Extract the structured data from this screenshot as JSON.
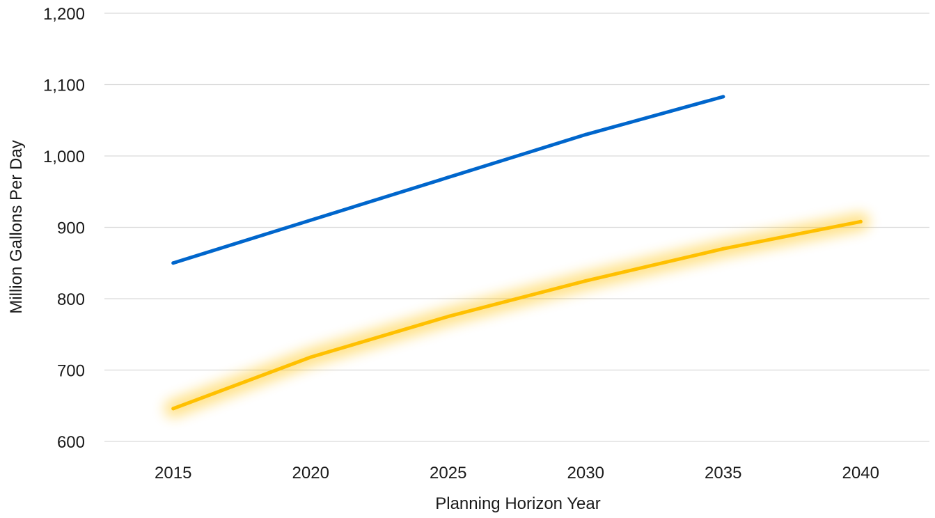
{
  "chart_data": {
    "type": "line",
    "title": "",
    "xlabel": "Planning Horizon Year",
    "ylabel": "Million Gallons Per Day",
    "ylim": [
      600,
      1200
    ],
    "y_ticks": [
      600,
      700,
      800,
      900,
      1000,
      1100,
      1200
    ],
    "y_tick_labels": [
      "600",
      "700",
      "800",
      "900",
      "1,000",
      "1,100",
      "1,200"
    ],
    "categories": [
      "2015",
      "2020",
      "2025",
      "2030",
      "2035",
      "2040"
    ],
    "grid": true,
    "legend": "none",
    "series": [
      {
        "values": [
          850,
          910,
          970,
          1030,
          1083,
          null
        ],
        "color": "#0066cc",
        "glow": false
      },
      {
        "values": [
          646,
          718,
          775,
          825,
          870,
          908
        ],
        "color": "#ffc000",
        "glow": true
      }
    ]
  }
}
